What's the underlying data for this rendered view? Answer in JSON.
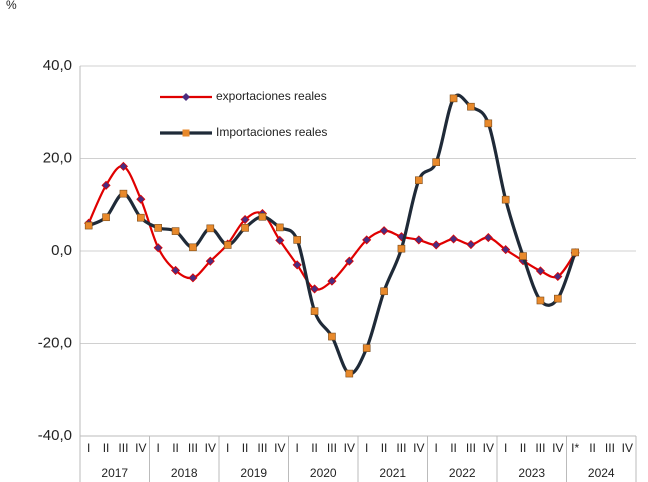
{
  "chart_data": {
    "type": "line",
    "y_label": "%",
    "categories": [
      "I",
      "II",
      "III",
      "IV",
      "I",
      "II",
      "III",
      "IV",
      "I",
      "II",
      "III",
      "IV",
      "I",
      "II",
      "III",
      "IV",
      "I",
      "II",
      "III",
      "IV",
      "I",
      "II",
      "III",
      "IV",
      "I",
      "II",
      "III",
      "IV",
      "I*",
      "II",
      "III",
      "IV"
    ],
    "groups": [
      "2017",
      "2018",
      "2019",
      "2020",
      "2021",
      "2022",
      "2023",
      "2024"
    ],
    "series": [
      {
        "name": "exportaciones reales",
        "color": "#e00000",
        "marker_color": "#4b2d7f",
        "marker": "diamond",
        "values": [
          6.0,
          14.2,
          18.3,
          11.2,
          0.7,
          -4.2,
          -5.8,
          -2.2,
          1.5,
          6.8,
          8.1,
          2.3,
          -3.0,
          -8.2,
          -6.5,
          -2.2,
          2.4,
          4.4,
          3.1,
          2.4,
          1.3,
          2.6,
          1.4,
          2.9,
          0.3,
          -2.1,
          -4.3,
          -5.5,
          -0.4,
          null,
          null,
          null
        ]
      },
      {
        "name": "Importaciones reales",
        "color": "#1f2a38",
        "marker_color": "#e8892b",
        "marker": "square",
        "values": [
          5.5,
          7.3,
          12.4,
          7.2,
          5.0,
          4.3,
          0.8,
          4.9,
          1.3,
          5.0,
          7.4,
          5.1,
          2.4,
          -13.0,
          -18.5,
          -26.5,
          -21.0,
          -8.7,
          0.5,
          15.3,
          19.2,
          33.0,
          31.2,
          27.6,
          11.1,
          -1.1,
          -10.7,
          -10.3,
          -0.3,
          null,
          null,
          null
        ]
      }
    ],
    "ylim": [
      -40,
      40
    ],
    "yticks": [
      {
        "value": -40,
        "label": "-40,0"
      },
      {
        "value": -20,
        "label": "-20,0"
      },
      {
        "value": 0,
        "label": "0,0"
      },
      {
        "value": 20,
        "label": "20,0"
      },
      {
        "value": 40,
        "label": "40,0"
      }
    ],
    "grid": true,
    "legend": "upper left"
  }
}
